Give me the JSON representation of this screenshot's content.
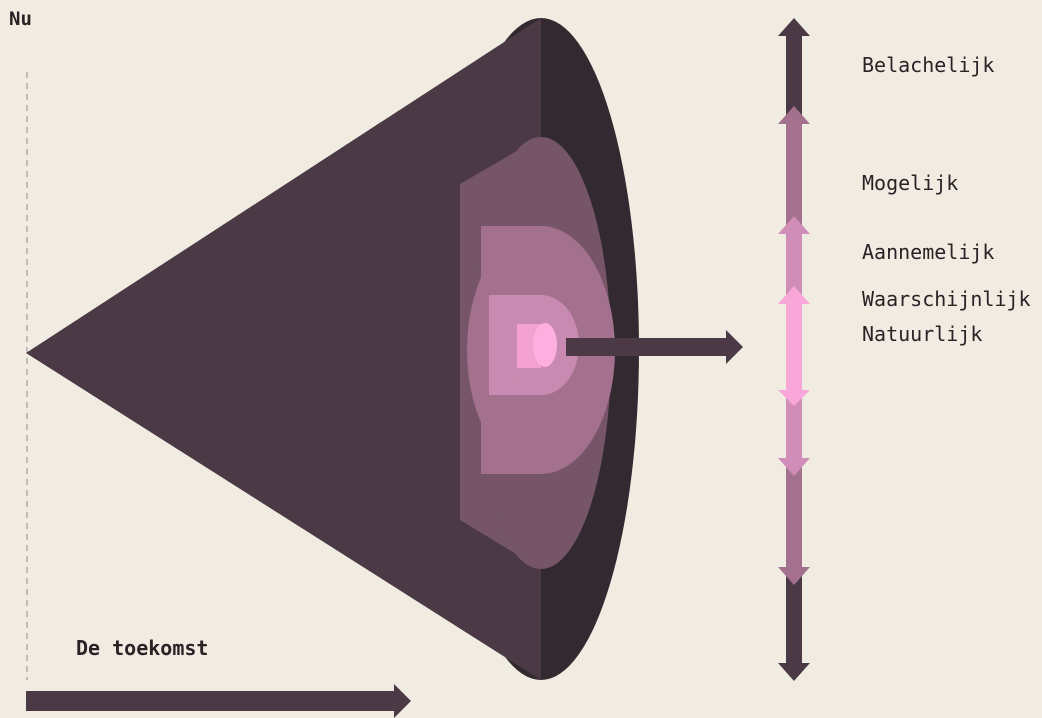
{
  "labels": {
    "now": "Nu",
    "future": "De toekomst"
  },
  "futures_cone": {
    "categories": [
      {
        "label": "Belachelijk",
        "color": "#4b3a45"
      },
      {
        "label": "Mogelijk",
        "color": "#a3708e"
      },
      {
        "label": "Aannemelijk",
        "color": "#d08db8"
      },
      {
        "label": "Waarschijnlijk",
        "color": "#f9a6d8"
      },
      {
        "label": "Natuurlijk",
        "color": "#ffc9ea"
      }
    ]
  },
  "colors": {
    "background": "#f0ece2",
    "cone": "#4b3a45",
    "cone_rim": "#322a30",
    "axis_arrow": "#4b3a45",
    "dashed_line": "#b5ada7"
  }
}
